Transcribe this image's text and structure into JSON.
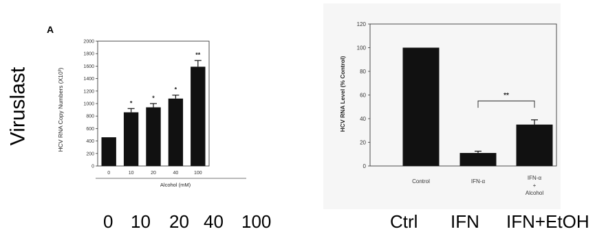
{
  "side_label": "Viruslast",
  "chart_data": [
    {
      "type": "bar",
      "panel_label": "A",
      "title": "",
      "ylabel": "HCV RNA Copy Numbers (X10³)",
      "xlabel": "Alcohol (mM)",
      "categories": [
        "0",
        "10",
        "20",
        "40",
        "100"
      ],
      "values": [
        460,
        860,
        940,
        1080,
        1590
      ],
      "errors": [
        0,
        60,
        60,
        55,
        100
      ],
      "significance": [
        "",
        "*",
        "*",
        "*",
        "**"
      ],
      "ylim": [
        0,
        2000
      ],
      "yticks": [
        0,
        200,
        400,
        600,
        800,
        1000,
        1200,
        1400,
        1600,
        1800,
        2000
      ],
      "color": "#111111"
    },
    {
      "type": "bar",
      "title": "",
      "ylabel": "HCV RNA Level (% Control)",
      "xlabel": "",
      "categories": [
        "Control",
        "IFN-α",
        "IFN-α + Alcohol"
      ],
      "values": [
        100,
        11,
        35
      ],
      "errors": [
        0,
        1.5,
        4
      ],
      "ylim": [
        0,
        120
      ],
      "yticks": [
        0,
        20,
        40,
        60,
        80,
        100,
        120
      ],
      "bracket": {
        "from": 1,
        "to": 2,
        "label": "**"
      },
      "color": "#111111"
    }
  ],
  "bottom_labels_a": [
    "0",
    "10",
    "20",
    "40",
    "100"
  ],
  "bottom_labels_b": [
    "Ctrl",
    "IFN",
    "IFN+EtOH"
  ]
}
